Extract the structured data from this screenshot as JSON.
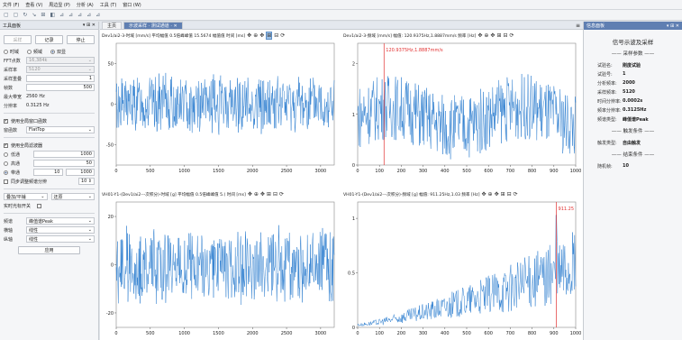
{
  "menu": [
    "文件 (F)",
    "查看 (V)",
    "周边显 (P)",
    "分析 (A)",
    "工具 (T)",
    "窗口 (W)"
  ],
  "toolbar_icons": [
    "▢",
    "▢",
    "↻",
    "↘",
    "⊞",
    "◧",
    "⊿",
    "⊿",
    "⊿",
    "⊿",
    "⊿"
  ],
  "left": {
    "title": "工具面板",
    "title_controls": "▾ ⊞ ✕",
    "buttons": [
      "采样",
      "记录",
      "停止"
    ],
    "domain_options": [
      "时域",
      "频域",
      "双显"
    ],
    "fft_label": "FFT点数",
    "fft_value": "16,384k",
    "rate_label": "采样率",
    "rate_value": "5120",
    "avg_label": "采样重叠",
    "avg_value": "1",
    "dur_label": "帧数",
    "dur_value": "500",
    "maxfreq_label": "最大带宽",
    "maxfreq_value": "2560 Hz",
    "res_label": "分辨率",
    "res_value": "0.3125 Hz",
    "window_check_label": "使用全局窗口函数",
    "window_label": "窗函数",
    "window_value": "FlatTop",
    "filter_check_label": "使用全局滤波器",
    "filter_options": [
      {
        "label": "低通",
        "value": "1000"
      },
      {
        "label": "高通",
        "value": "50"
      },
      {
        "label": "带通",
        "value": "10",
        "value2": "1000"
      }
    ],
    "sync_label": "同步调整频谱分辨",
    "sync_value": "10",
    "dropdown1": "叠加/平铺",
    "dropdown2": "还原",
    "realtime_label": "实时光标开关",
    "bottom": [
      {
        "label": "频谱",
        "value": "峰值谱Peak"
      },
      {
        "label": "横轴",
        "value": "线性"
      },
      {
        "label": "纵轴",
        "value": "线性"
      }
    ],
    "apply_label": "应用"
  },
  "main": {
    "tabs": [
      "主页",
      "示波采样 · 测试通道 · ✕"
    ],
    "close_glyph": "≡"
  },
  "charts": [
    {
      "header": "Dev1/ai2-3-时域  [mm/s]  平均幅值 0.5倍峰峰值 15.5674 幅值值  时间  [ms]",
      "chart_data": {
        "type": "line",
        "x_ticks": [
          "0",
          "500",
          "1000",
          "1500",
          "2000",
          "2500",
          "3000"
        ],
        "y_ticks": [
          "50",
          "0",
          "-50"
        ],
        "xlim": [
          0,
          3200
        ],
        "ylim": [
          -75,
          75
        ],
        "style": "noise",
        "amplitude": 40
      }
    },
    {
      "header": "Dev1/ai2-3-频域  [mm/s]  幅值: 120.9375Hz,1.8887mm/s  频率  [Hz]",
      "chart_data": {
        "type": "line",
        "x_ticks": [
          "0",
          "100",
          "200",
          "300",
          "400",
          "500",
          "600",
          "700",
          "800",
          "900",
          "1000"
        ],
        "y_ticks": [
          "2",
          "1",
          "0"
        ],
        "xlim": [
          0,
          1000
        ],
        "ylim": [
          0,
          2.4
        ],
        "style": "spectrum",
        "cursor_x": 120.9375,
        "cursor_label": "120.9375Hz,1.8887mm/s"
      }
    },
    {
      "header": "VH01-Y1-(Dev1/ai2---次积分)-时域  [g]  平均幅值 0.5倍峰峰值 5.( 时间  [ms]",
      "chart_data": {
        "type": "line",
        "x_ticks": [
          "0",
          "500",
          "1000",
          "1500",
          "2000",
          "2500",
          "3000"
        ],
        "y_ticks": [
          "20",
          "0",
          "-20"
        ],
        "xlim": [
          0,
          3200
        ],
        "ylim": [
          -26,
          26
        ],
        "style": "noise",
        "amplitude": 17
      }
    },
    {
      "header": "VH01-Y1-(Dev1/ai2---次积分)-频域  [g]  幅值: 911.25Hz,1.03  频率  [Hz]",
      "chart_data": {
        "type": "line",
        "x_ticks": [
          "0",
          "100",
          "200",
          "300",
          "400",
          "500",
          "600",
          "700",
          "800",
          "900",
          "1000"
        ],
        "y_ticks": [
          "1",
          "0.5",
          "0"
        ],
        "xlim": [
          0,
          1000
        ],
        "ylim": [
          0,
          1.15
        ],
        "style": "ramp",
        "cursor_x": 911.25,
        "cursor_label": "911.25"
      }
    }
  ],
  "chart_icons": [
    "✥",
    "⊕",
    "✥",
    "⊞",
    "⊟",
    "⟳"
  ],
  "right": {
    "title": "信息面板",
    "title_controls": "▾ ⊞ ✕",
    "heading": "信号示波及采样",
    "sec1": "—— 采样参数 ——",
    "rows1": [
      {
        "k": "试验名:",
        "v": "刚度试验"
      },
      {
        "k": "试验号:",
        "v": "1"
      },
      {
        "k": "分析频率:",
        "v": "2000"
      },
      {
        "k": "采样频率:",
        "v": "5120"
      },
      {
        "k": "时间分辨率:",
        "v": "0.0002s"
      },
      {
        "k": "频率分辨率:",
        "v": "0.3125Hz"
      },
      {
        "k": "频谱类型:",
        "v": "峰值谱Peak"
      }
    ],
    "sec2": "—— 触发条件 ——",
    "rows2": [
      {
        "k": "触发类型:",
        "v": "自由触发"
      }
    ],
    "sec3": "—— 结束条件 ——",
    "rows3": [
      {
        "k": "随机帧:",
        "v": "10"
      }
    ]
  }
}
